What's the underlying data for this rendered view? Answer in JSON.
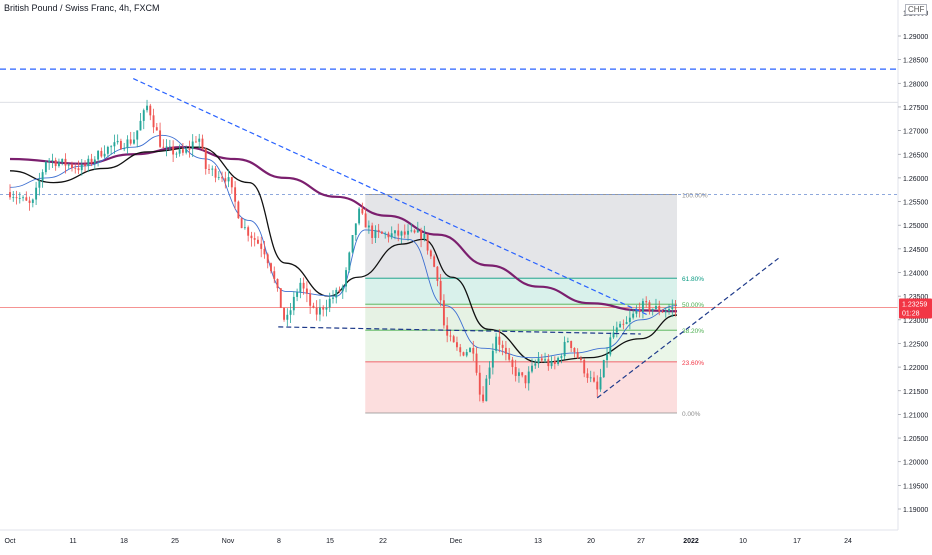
{
  "header": {
    "title": "British Pound / Swiss Franc, 4h, FXCM",
    "currency": "CHF"
  },
  "colors": {
    "bull": "#26a69a",
    "bear": "#ef5350",
    "ma_long": "#7b1f6e",
    "ma_mid": "#111111",
    "ma_short": "#3d6fd1",
    "trendline": "#2962ff",
    "price_line": "#ef5350",
    "price_label_bg": "#f23645"
  },
  "last_price": {
    "value": 1.23259,
    "label": "1.23259",
    "countdown": "01:28"
  },
  "chart_data": {
    "type": "candlestick",
    "title": "British Pound / Swiss Franc, 4h, FXCM",
    "y_axis": {
      "ylim": [
        1.1855,
        1.2975
      ],
      "ticks": [
        "1.29000",
        "1.28500",
        "1.28000",
        "1.27500",
        "1.27000",
        "1.26500",
        "1.26000",
        "1.25500",
        "1.25000",
        "1.24500",
        "1.24000",
        "1.23500",
        "1.23000",
        "1.22500",
        "1.22000",
        "1.21500",
        "1.21000",
        "1.20500",
        "1.20000",
        "1.19500",
        "1.19000"
      ],
      "top_partial": "1.29500"
    },
    "x_axis": {
      "ticks": [
        "Oct",
        "11",
        "18",
        "25",
        "Nov",
        "8",
        "15",
        "22",
        "Dec",
        "13",
        "20",
        "27",
        "2022",
        "10",
        "17",
        "24"
      ],
      "bold": [
        "2022"
      ]
    },
    "anchors": [
      {
        "d": "Oct 1",
        "p": 1.257
      },
      {
        "d": "Oct 4",
        "p": 1.254
      },
      {
        "d": "Oct 6",
        "p": 1.264
      },
      {
        "d": "Oct 11",
        "p": 1.262
      },
      {
        "d": "Oct 14",
        "p": 1.266
      },
      {
        "d": "Oct 18",
        "p": 1.268
      },
      {
        "d": "Oct 20",
        "p": 1.2755
      },
      {
        "d": "Oct 22",
        "p": 1.266
      },
      {
        "d": "Oct 25",
        "p": 1.265
      },
      {
        "d": "Oct 27",
        "p": 1.269
      },
      {
        "d": "Oct 28",
        "p": 1.262
      },
      {
        "d": "Oct 31",
        "p": 1.26
      },
      {
        "d": "Nov 2",
        "p": 1.25
      },
      {
        "d": "Nov 5",
        "p": 1.245
      },
      {
        "d": "Nov 6",
        "p": 1.241
      },
      {
        "d": "Nov 8",
        "p": 1.229
      },
      {
        "d": "Nov 10",
        "p": 1.238
      },
      {
        "d": "Nov 12",
        "p": 1.231
      },
      {
        "d": "Nov 16",
        "p": 1.237
      },
      {
        "d": "Nov 18",
        "p": 1.253
      },
      {
        "d": "Nov 20",
        "p": 1.248
      },
      {
        "d": "Nov 24",
        "p": 1.248
      },
      {
        "d": "Nov 27",
        "p": 1.248
      },
      {
        "d": "Nov 29",
        "p": 1.239
      },
      {
        "d": "Nov 30",
        "p": 1.227
      },
      {
        "d": "Dec 2",
        "p": 1.223
      },
      {
        "d": "Dec 4",
        "p": 1.224
      },
      {
        "d": "Dec 5",
        "p": 1.212
      },
      {
        "d": "Dec 7",
        "p": 1.227
      },
      {
        "d": "Dec 9",
        "p": 1.22
      },
      {
        "d": "Dec 11",
        "p": 1.217
      },
      {
        "d": "Dec 13",
        "p": 1.222
      },
      {
        "d": "Dec 15",
        "p": 1.22
      },
      {
        "d": "Dec 17",
        "p": 1.226
      },
      {
        "d": "Dec 19",
        "p": 1.22
      },
      {
        "d": "Dec 21",
        "p": 1.215
      },
      {
        "d": "Dec 23",
        "p": 1.227
      },
      {
        "d": "Dec 25",
        "p": 1.229
      },
      {
        "d": "Dec 27",
        "p": 1.233
      },
      {
        "d": "Dec 30",
        "p": 1.232
      },
      {
        "d": "Jan 1",
        "p": 1.2326
      }
    ],
    "moving_averages": [
      {
        "name": "long",
        "points": [
          {
            "d": "Oct 1",
            "p": 1.264
          },
          {
            "d": "Oct 11",
            "p": 1.263
          },
          {
            "d": "Oct 18",
            "p": 1.265
          },
          {
            "d": "Oct 25",
            "p": 1.2665
          },
          {
            "d": "Nov 1",
            "p": 1.264
          },
          {
            "d": "Nov 8",
            "p": 1.26
          },
          {
            "d": "Nov 15",
            "p": 1.256
          },
          {
            "d": "Nov 22",
            "p": 1.252
          },
          {
            "d": "Nov 29",
            "p": 1.248
          },
          {
            "d": "Dec 6",
            "p": 1.2415
          },
          {
            "d": "Dec 13",
            "p": 1.237
          },
          {
            "d": "Dec 20",
            "p": 1.2335
          },
          {
            "d": "Dec 27",
            "p": 1.232
          },
          {
            "d": "Jan 1",
            "p": 1.2318
          }
        ]
      },
      {
        "name": "mid",
        "points": [
          {
            "d": "Oct 1",
            "p": 1.2615
          },
          {
            "d": "Oct 7",
            "p": 1.259
          },
          {
            "d": "Oct 14",
            "p": 1.262
          },
          {
            "d": "Oct 20",
            "p": 1.2655
          },
          {
            "d": "Oct 27",
            "p": 1.2665
          },
          {
            "d": "Nov 3",
            "p": 1.259
          },
          {
            "d": "Nov 8",
            "p": 1.242
          },
          {
            "d": "Nov 14",
            "p": 1.235
          },
          {
            "d": "Nov 18",
            "p": 1.239
          },
          {
            "d": "Nov 24",
            "p": 1.246
          },
          {
            "d": "Nov 27",
            "p": 1.247
          },
          {
            "d": "Dec 1",
            "p": 1.239
          },
          {
            "d": "Dec 6",
            "p": 1.228
          },
          {
            "d": "Dec 13",
            "p": 1.221
          },
          {
            "d": "Dec 20",
            "p": 1.222
          },
          {
            "d": "Dec 27",
            "p": 1.226
          },
          {
            "d": "Jan 1",
            "p": 1.231
          }
        ]
      },
      {
        "name": "short",
        "points": [
          {
            "d": "Oct 1",
            "p": 1.258
          },
          {
            "d": "Oct 6",
            "p": 1.26
          },
          {
            "d": "Oct 11",
            "p": 1.2625
          },
          {
            "d": "Oct 18",
            "p": 1.2665
          },
          {
            "d": "Oct 22",
            "p": 1.269
          },
          {
            "d": "Oct 28",
            "p": 1.264
          },
          {
            "d": "Nov 3",
            "p": 1.251
          },
          {
            "d": "Nov 8",
            "p": 1.236
          },
          {
            "d": "Nov 15",
            "p": 1.235
          },
          {
            "d": "Nov 19",
            "p": 1.249
          },
          {
            "d": "Nov 25",
            "p": 1.247
          },
          {
            "d": "Nov 30",
            "p": 1.233
          },
          {
            "d": "Dec 5",
            "p": 1.224
          },
          {
            "d": "Dec 12",
            "p": 1.222
          },
          {
            "d": "Dec 18",
            "p": 1.223
          },
          {
            "d": "Dec 22",
            "p": 1.224
          },
          {
            "d": "Dec 27",
            "p": 1.23
          },
          {
            "d": "Jan 1",
            "p": 1.233
          }
        ]
      }
    ],
    "trendlines": [
      {
        "name": "descending-resistance",
        "from": {
          "d": "Oct 18",
          "p": 1.281
        },
        "to": {
          "d": "Dec 28",
          "p": 1.231
        }
      },
      {
        "name": "descending-support",
        "from": {
          "d": "Nov 7",
          "p": 1.2285
        },
        "to": {
          "d": "Dec 27",
          "p": 1.227
        }
      },
      {
        "name": "ascending-support",
        "from": {
          "d": "Dec 21",
          "p": 1.2135
        },
        "to": {
          "d": "Jan 15",
          "p": 1.243
        }
      },
      {
        "name": "upper-horizontal",
        "from": {
          "d": "Oct 1",
          "p": 1.283
        },
        "to": {
          "d": "Jan 31",
          "p": 1.283
        }
      }
    ],
    "fibonacci": {
      "from_date": "Nov 19",
      "to_date": "Jan 1",
      "levels": [
        {
          "ratio": "100.00%",
          "price": 1.2565,
          "color": "#8c8c8c",
          "zone": "#e1e2e6"
        },
        {
          "ratio": "61.80%",
          "price": 1.2388,
          "color": "#089981",
          "zone": "#d5efe9"
        },
        {
          "ratio": "50.00%",
          "price": 1.2333,
          "color": "#4caf50",
          "zone": "#e3f1e1"
        },
        {
          "ratio": "38.20%",
          "price": 1.2278,
          "color": "#4caf50",
          "zone": "#e8f5e6"
        },
        {
          "ratio": "23.60%",
          "price": 1.2211,
          "color": "#f23645",
          "zone": "#fcdada"
        },
        {
          "ratio": "0.00%",
          "price": 1.2103,
          "color": "#8c8c8c",
          "zone": null
        }
      ]
    }
  }
}
